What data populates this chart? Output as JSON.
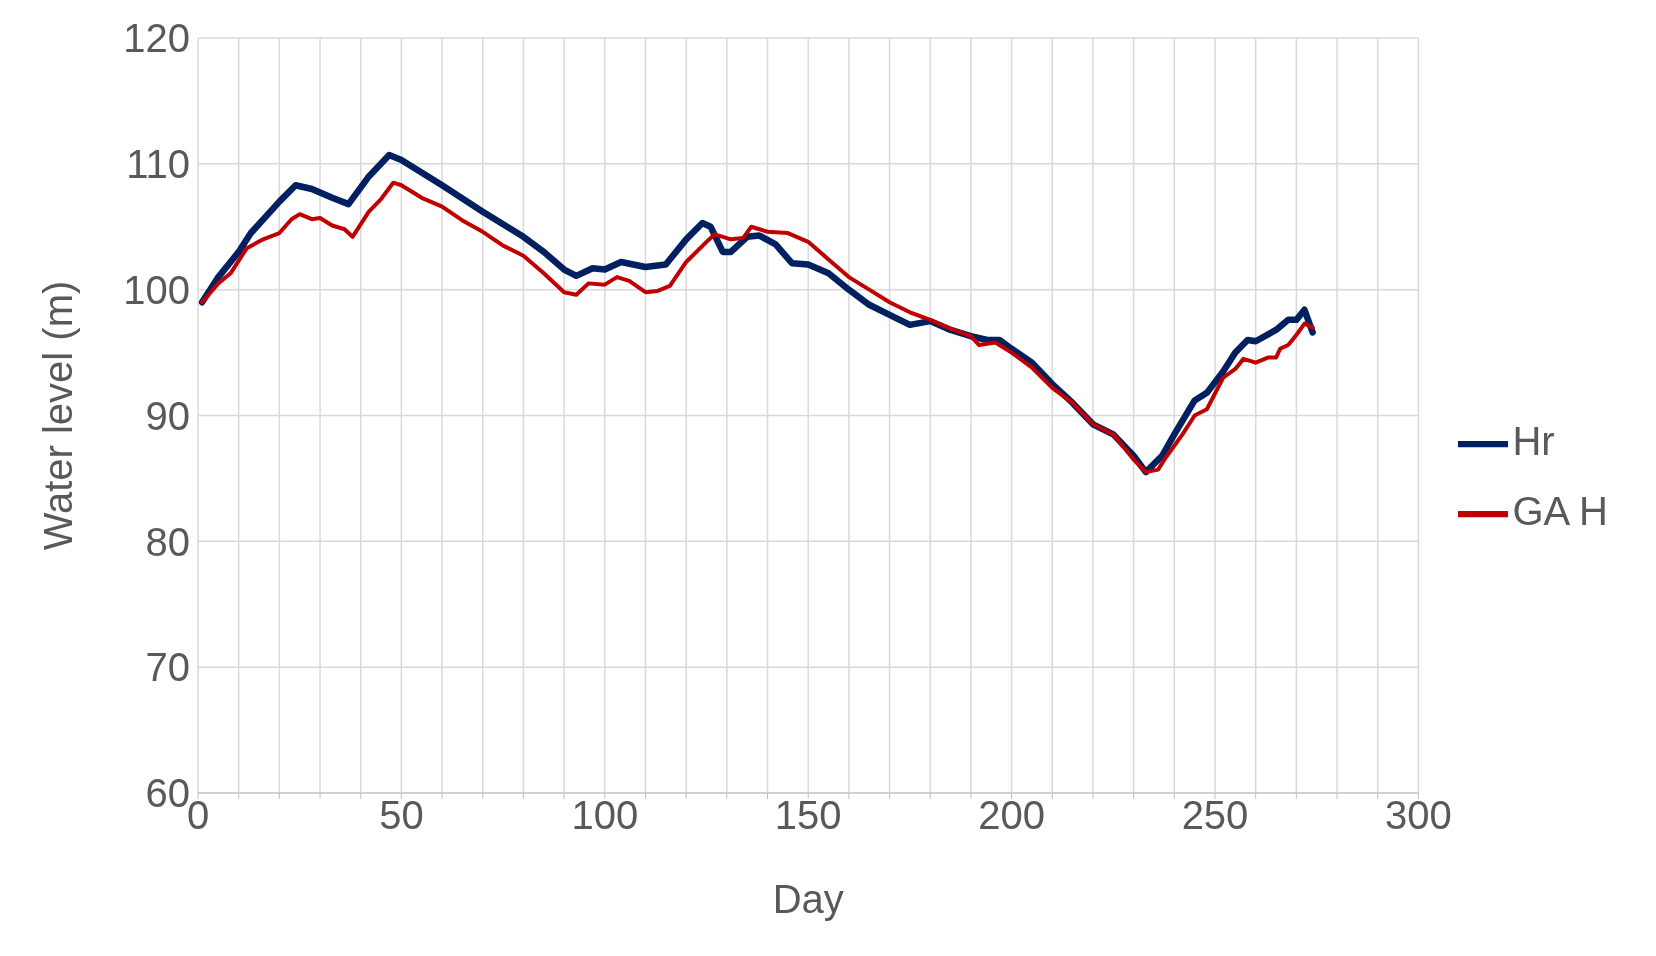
{
  "chart_data": {
    "type": "line",
    "xlabel": "Day",
    "ylabel": "Water level (m)",
    "xlim": [
      0,
      300
    ],
    "xticks": [
      0,
      {
        "value": 10,
        "label": null
      },
      {
        "value": 20,
        "label": null
      },
      {
        "value": 30,
        "label": null
      },
      {
        "value": 40,
        "label": null
      },
      50,
      {
        "value": 60,
        "label": null
      },
      {
        "value": 70,
        "label": null
      },
      {
        "value": 80,
        "label": null
      },
      {
        "value": 90,
        "label": null
      },
      100,
      {
        "value": 110,
        "label": null
      },
      {
        "value": 120,
        "label": null
      },
      {
        "value": 130,
        "label": null
      },
      {
        "value": 140,
        "label": null
      },
      150,
      {
        "value": 160,
        "label": null
      },
      {
        "value": 170,
        "label": null
      },
      {
        "value": 180,
        "label": null
      },
      {
        "value": 190,
        "label": null
      },
      200,
      {
        "value": 210,
        "label": null
      },
      {
        "value": 220,
        "label": null
      },
      {
        "value": 230,
        "label": null
      },
      {
        "value": 240,
        "label": null
      },
      250,
      {
        "value": 260,
        "label": null
      },
      {
        "value": 270,
        "label": null
      },
      {
        "value": 280,
        "label": null
      },
      {
        "value": 290,
        "label": null
      },
      300
    ],
    "ylim": [
      60,
      120
    ],
    "yticks": [
      60,
      70,
      80,
      90,
      100,
      110,
      120
    ],
    "grid": true,
    "legend": "right",
    "marker": "none",
    "line_style": "solid",
    "series": [
      {
        "name": "Hr",
        "color": "#002060",
        "x": [
          1,
          5,
          10,
          13,
          20,
          24,
          28,
          33,
          37,
          42,
          47,
          50,
          60,
          70,
          80,
          85,
          90,
          93,
          97,
          100,
          104,
          110,
          115,
          120,
          124,
          126,
          129,
          131,
          135,
          138,
          142,
          146,
          150,
          155,
          160,
          165,
          170,
          175,
          180,
          185,
          190,
          194,
          197,
          200,
          205,
          210,
          215,
          220,
          225,
          230,
          233,
          237,
          240,
          245,
          248,
          252,
          255,
          258,
          260,
          265,
          268,
          270,
          272,
          274
        ],
        "values": [
          99,
          101,
          103,
          104.5,
          107,
          108.3,
          108,
          107.3,
          106.8,
          109,
          110.7,
          110.3,
          108.3,
          106.2,
          104.2,
          103,
          101.6,
          101.1,
          101.7,
          101.6,
          102.2,
          101.8,
          102,
          104,
          105.3,
          105,
          103,
          103,
          104.2,
          104.3,
          103.6,
          102.1,
          102,
          101.3,
          100,
          98.8,
          98,
          97.2,
          97.5,
          96.8,
          96.3,
          96,
          96,
          95.3,
          94.2,
          92.5,
          91,
          89.3,
          88.5,
          86.8,
          85.5,
          86.8,
          88.5,
          91.2,
          91.8,
          93.5,
          95,
          96,
          95.9,
          96.8,
          97.6,
          97.6,
          98.4,
          96.6
        ]
      },
      {
        "name": "GA H",
        "color": "#c00000",
        "x": [
          1,
          5,
          8,
          12,
          16,
          20,
          23,
          25,
          28,
          30,
          33,
          36,
          38,
          42,
          45,
          48,
          50,
          55,
          60,
          65,
          70,
          75,
          80,
          85,
          90,
          93,
          96,
          100,
          103,
          106,
          110,
          113,
          116,
          120,
          125,
          127,
          131,
          134,
          136,
          140,
          145,
          150,
          155,
          160,
          165,
          170,
          175,
          180,
          185,
          190,
          192,
          196,
          200,
          205,
          210,
          215,
          220,
          225,
          230,
          233,
          236,
          238,
          242,
          245,
          248,
          252,
          255,
          257,
          260,
          263,
          265,
          266,
          268,
          270,
          272,
          274
        ],
        "values": [
          99,
          100.5,
          101.3,
          103.3,
          104,
          104.5,
          105.6,
          106,
          105.6,
          105.7,
          105.1,
          104.8,
          104.2,
          106.2,
          107.2,
          108.5,
          108.3,
          107.3,
          106.6,
          105.5,
          104.6,
          103.5,
          102.7,
          101.3,
          99.8,
          99.6,
          100.5,
          100.4,
          101,
          100.7,
          99.8,
          99.9,
          100.3,
          102.2,
          103.8,
          104.4,
          104,
          104.1,
          105,
          104.6,
          104.5,
          103.8,
          102.4,
          101,
          100,
          99,
          98.2,
          97.6,
          96.9,
          96.3,
          95.6,
          95.8,
          95,
          93.8,
          92.2,
          91,
          89.3,
          88.5,
          86.5,
          85.5,
          85.7,
          86.7,
          88.5,
          90,
          90.5,
          93,
          93.7,
          94.5,
          94.2,
          94.6,
          94.6,
          95.3,
          95.6,
          96.4,
          97.3,
          97
        ]
      }
    ]
  }
}
